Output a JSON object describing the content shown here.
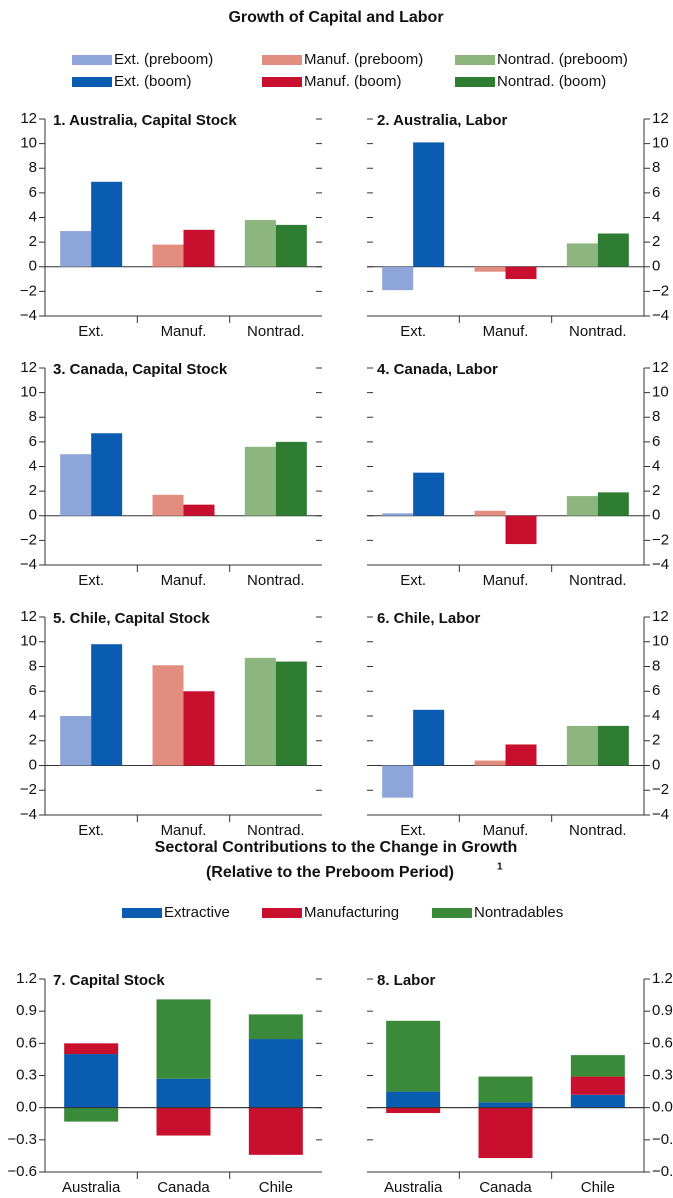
{
  "sections": [
    {
      "title": "Growth of Capital and Labor"
    },
    {
      "title": [
        "Sectoral Contributions to the Change in Growth",
        "(Relative to the Preboom Period)"
      ],
      "footnote": "1"
    }
  ],
  "chart_data": [
    {
      "type": "bar",
      "title": "1. Australia, Capital Stock",
      "yaxis_position": "left",
      "categories": [
        "Ext.",
        "Manuf.",
        "Nontrad."
      ],
      "series": [
        {
          "name": "Ext. (preboom)",
          "color": "#8da5d8",
          "values": [
            2.9,
            null,
            null
          ]
        },
        {
          "name": "Ext. (boom)",
          "color": "#0a5cb0",
          "values": [
            6.9,
            null,
            null
          ]
        },
        {
          "name": "Manuf. (preboom)",
          "color": "#e38c80",
          "values": [
            null,
            1.8,
            null
          ]
        },
        {
          "name": "Manuf. (boom)",
          "color": "#c8102e",
          "values": [
            null,
            3.0,
            null
          ]
        },
        {
          "name": "Nontrad. (preboom)",
          "color": "#8db57e",
          "values": [
            null,
            null,
            3.8
          ]
        },
        {
          "name": "Nontrad. (boom)",
          "color": "#2e7d32",
          "values": [
            null,
            null,
            3.4
          ]
        }
      ],
      "ylim": [
        -4,
        12
      ],
      "yticks": [
        {
          "value": -4,
          "label": "−4"
        },
        {
          "value": -2,
          "label": "−2"
        },
        0,
        2,
        4,
        6,
        8,
        10,
        12
      ]
    },
    {
      "type": "bar",
      "title": "2. Australia, Labor",
      "yaxis_position": "right",
      "categories": [
        "Ext.",
        "Manuf.",
        "Nontrad."
      ],
      "series": [
        {
          "name": "Ext. (preboom)",
          "color": "#8da5d8",
          "values": [
            -1.9,
            null,
            null
          ]
        },
        {
          "name": "Ext. (boom)",
          "color": "#0a5cb0",
          "values": [
            10.1,
            null,
            null
          ]
        },
        {
          "name": "Manuf. (preboom)",
          "color": "#e38c80",
          "values": [
            null,
            -0.4,
            null
          ]
        },
        {
          "name": "Manuf. (boom)",
          "color": "#c8102e",
          "values": [
            null,
            -1.0,
            null
          ]
        },
        {
          "name": "Nontrad. (preboom)",
          "color": "#8db57e",
          "values": [
            null,
            null,
            1.9
          ]
        },
        {
          "name": "Nontrad. (boom)",
          "color": "#2e7d32",
          "values": [
            null,
            null,
            2.7
          ]
        }
      ],
      "ylim": [
        -4,
        12
      ],
      "yticks": [
        {
          "value": -4,
          "label": "−4"
        },
        {
          "value": -2,
          "label": "−2"
        },
        0,
        2,
        4,
        6,
        8,
        10,
        12
      ]
    },
    {
      "type": "bar",
      "title": "3. Canada, Capital Stock",
      "yaxis_position": "left",
      "categories": [
        "Ext.",
        "Manuf.",
        "Nontrad."
      ],
      "series": [
        {
          "name": "Ext. (preboom)",
          "color": "#8da5d8",
          "values": [
            5.0,
            null,
            null
          ]
        },
        {
          "name": "Ext. (boom)",
          "color": "#0a5cb0",
          "values": [
            6.7,
            null,
            null
          ]
        },
        {
          "name": "Manuf. (preboom)",
          "color": "#e38c80",
          "values": [
            null,
            1.7,
            null
          ]
        },
        {
          "name": "Manuf. (boom)",
          "color": "#c8102e",
          "values": [
            null,
            0.9,
            null
          ]
        },
        {
          "name": "Nontrad. (preboom)",
          "color": "#8db57e",
          "values": [
            null,
            null,
            5.6
          ]
        },
        {
          "name": "Nontrad. (boom)",
          "color": "#2e7d32",
          "values": [
            null,
            null,
            6.0
          ]
        }
      ],
      "ylim": [
        -4,
        12
      ],
      "yticks": [
        {
          "value": -4,
          "label": "−4"
        },
        {
          "value": -2,
          "label": "−2"
        },
        0,
        2,
        4,
        6,
        8,
        10,
        12
      ]
    },
    {
      "type": "bar",
      "title": "4. Canada, Labor",
      "yaxis_position": "right",
      "categories": [
        "Ext.",
        "Manuf.",
        "Nontrad."
      ],
      "series": [
        {
          "name": "Ext. (preboom)",
          "color": "#8da5d8",
          "values": [
            0.2,
            null,
            null
          ]
        },
        {
          "name": "Ext. (boom)",
          "color": "#0a5cb0",
          "values": [
            3.5,
            null,
            null
          ]
        },
        {
          "name": "Manuf. (preboom)",
          "color": "#e38c80",
          "values": [
            null,
            0.4,
            null
          ]
        },
        {
          "name": "Manuf. (boom)",
          "color": "#c8102e",
          "values": [
            null,
            -2.3,
            null
          ]
        },
        {
          "name": "Nontrad. (preboom)",
          "color": "#8db57e",
          "values": [
            null,
            null,
            1.6
          ]
        },
        {
          "name": "Nontrad. (boom)",
          "color": "#2e7d32",
          "values": [
            null,
            null,
            1.9
          ]
        }
      ],
      "ylim": [
        -4,
        12
      ],
      "yticks": [
        {
          "value": -4,
          "label": "−4"
        },
        {
          "value": -2,
          "label": "−2"
        },
        0,
        2,
        4,
        6,
        8,
        10,
        12
      ]
    },
    {
      "type": "bar",
      "title": "5. Chile, Capital Stock",
      "yaxis_position": "left",
      "categories": [
        "Ext.",
        "Manuf.",
        "Nontrad."
      ],
      "series": [
        {
          "name": "Ext. (preboom)",
          "color": "#8da5d8",
          "values": [
            4.0,
            null,
            null
          ]
        },
        {
          "name": "Ext. (boom)",
          "color": "#0a5cb0",
          "values": [
            9.8,
            null,
            null
          ]
        },
        {
          "name": "Manuf. (preboom)",
          "color": "#e38c80",
          "values": [
            null,
            8.1,
            null
          ]
        },
        {
          "name": "Manuf. (boom)",
          "color": "#c8102e",
          "values": [
            null,
            6.0,
            null
          ]
        },
        {
          "name": "Nontrad. (preboom)",
          "color": "#8db57e",
          "values": [
            null,
            null,
            8.7
          ]
        },
        {
          "name": "Nontrad. (boom)",
          "color": "#2e7d32",
          "values": [
            null,
            null,
            8.4
          ]
        }
      ],
      "ylim": [
        -4,
        12
      ],
      "yticks": [
        {
          "value": -4,
          "label": "−4"
        },
        {
          "value": -2,
          "label": "−2"
        },
        0,
        2,
        4,
        6,
        8,
        10,
        12
      ]
    },
    {
      "type": "bar",
      "title": "6. Chile, Labor",
      "yaxis_position": "right",
      "categories": [
        "Ext.",
        "Manuf.",
        "Nontrad."
      ],
      "series": [
        {
          "name": "Ext. (preboom)",
          "color": "#8da5d8",
          "values": [
            -2.6,
            null,
            null
          ]
        },
        {
          "name": "Ext. (boom)",
          "color": "#0a5cb0",
          "values": [
            4.5,
            null,
            null
          ]
        },
        {
          "name": "Manuf. (preboom)",
          "color": "#e38c80",
          "values": [
            null,
            0.4,
            null
          ]
        },
        {
          "name": "Manuf. (boom)",
          "color": "#c8102e",
          "values": [
            null,
            1.7,
            null
          ]
        },
        {
          "name": "Nontrad. (preboom)",
          "color": "#8db57e",
          "values": [
            null,
            null,
            3.2
          ]
        },
        {
          "name": "Nontrad. (boom)",
          "color": "#2e7d32",
          "values": [
            null,
            null,
            3.2
          ]
        }
      ],
      "ylim": [
        -4,
        12
      ],
      "yticks": [
        {
          "value": -4,
          "label": "−4"
        },
        {
          "value": -2,
          "label": "−2"
        },
        0,
        2,
        4,
        6,
        8,
        10,
        12
      ]
    },
    {
      "type": "stacked_bar",
      "title": "7. Capital Stock",
      "yaxis_position": "left",
      "categories": [
        "Australia",
        "Canada",
        "Chile"
      ],
      "series": [
        {
          "name": "Extractive",
          "color": "#0a5cb0",
          "values": [
            0.5,
            0.27,
            0.64
          ]
        },
        {
          "name": "Manufacturing",
          "color": "#c8102e",
          "values": [
            0.1,
            -0.26,
            -0.44
          ]
        },
        {
          "name": "Nontradables",
          "color": "#3a8a3a",
          "values": [
            -0.13,
            0.74,
            0.23
          ]
        }
      ],
      "ylim": [
        -0.6,
        1.2
      ],
      "yticks": [
        {
          "value": -0.6,
          "label": "−0.6"
        },
        {
          "value": -0.3,
          "label": "−0.3"
        },
        {
          "value": 0,
          "label": "0.0"
        },
        0.3,
        0.6,
        0.9,
        1.2
      ]
    },
    {
      "type": "stacked_bar",
      "title": "8. Labor",
      "yaxis_position": "right",
      "categories": [
        "Australia",
        "Canada",
        "Chile"
      ],
      "series": [
        {
          "name": "Extractive",
          "color": "#0a5cb0",
          "values": [
            0.15,
            0.05,
            0.12
          ]
        },
        {
          "name": "Manufacturing",
          "color": "#c8102e",
          "values": [
            -0.05,
            -0.47,
            0.17
          ]
        },
        {
          "name": "Nontradables",
          "color": "#3a8a3a",
          "values": [
            0.66,
            0.24,
            0.2
          ]
        }
      ],
      "ylim": [
        -0.6,
        1.2
      ],
      "yticks": [
        {
          "value": -0.6,
          "label": "−0.6"
        },
        {
          "value": -0.3,
          "label": "−0.3"
        },
        {
          "value": 0,
          "label": "0.0"
        },
        0.3,
        0.6,
        0.9,
        1.2
      ]
    }
  ]
}
